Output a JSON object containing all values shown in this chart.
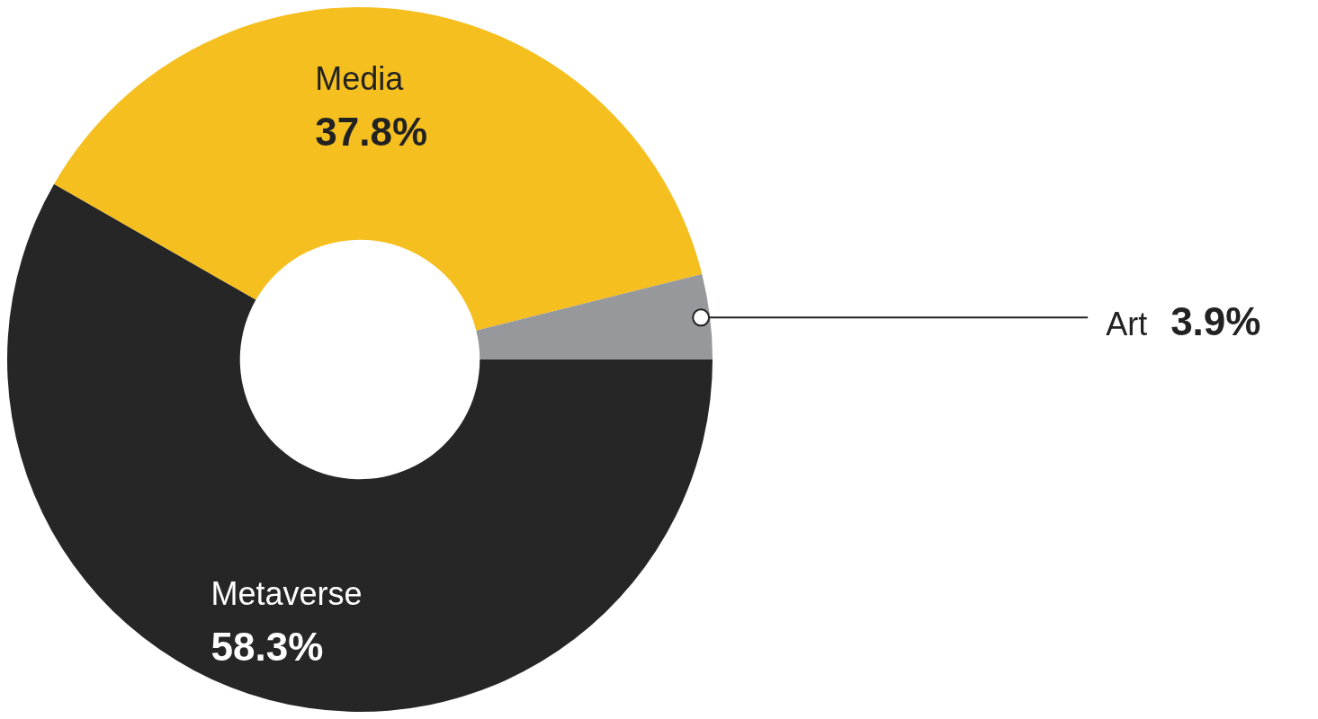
{
  "chart_data": {
    "type": "donut",
    "categories": [
      "Metaverse",
      "Media",
      "Art"
    ],
    "values": [
      58.3,
      37.8,
      3.9
    ],
    "colors": [
      "#262626",
      "#f5bf1f",
      "#97989b"
    ],
    "value_labels": [
      "58.3%",
      "37.8%",
      "3.9%"
    ],
    "legend": false
  }
}
